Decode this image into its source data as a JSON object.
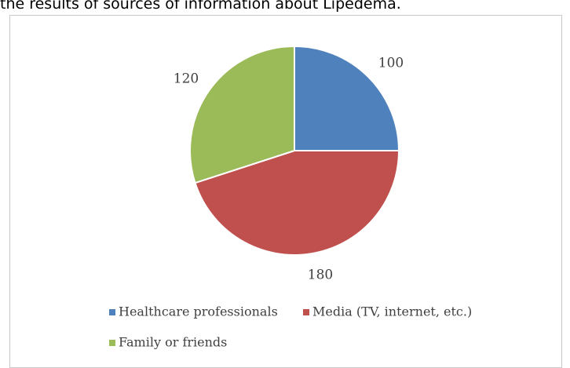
{
  "caption": "the results of sources of information about Lipedema.",
  "chart_data": {
    "type": "pie",
    "title": "",
    "categories": [
      "Healthcare professionals",
      "Media (TV, internet, etc.)",
      "Family or friends"
    ],
    "values": [
      100,
      180,
      120
    ],
    "colors": [
      "#4f81bd",
      "#c0504d",
      "#9bbb59"
    ],
    "start_angle_deg": 0,
    "direction": "clockwise",
    "data_labels": [
      "100",
      "180",
      "120"
    ],
    "legend_position": "bottom"
  }
}
